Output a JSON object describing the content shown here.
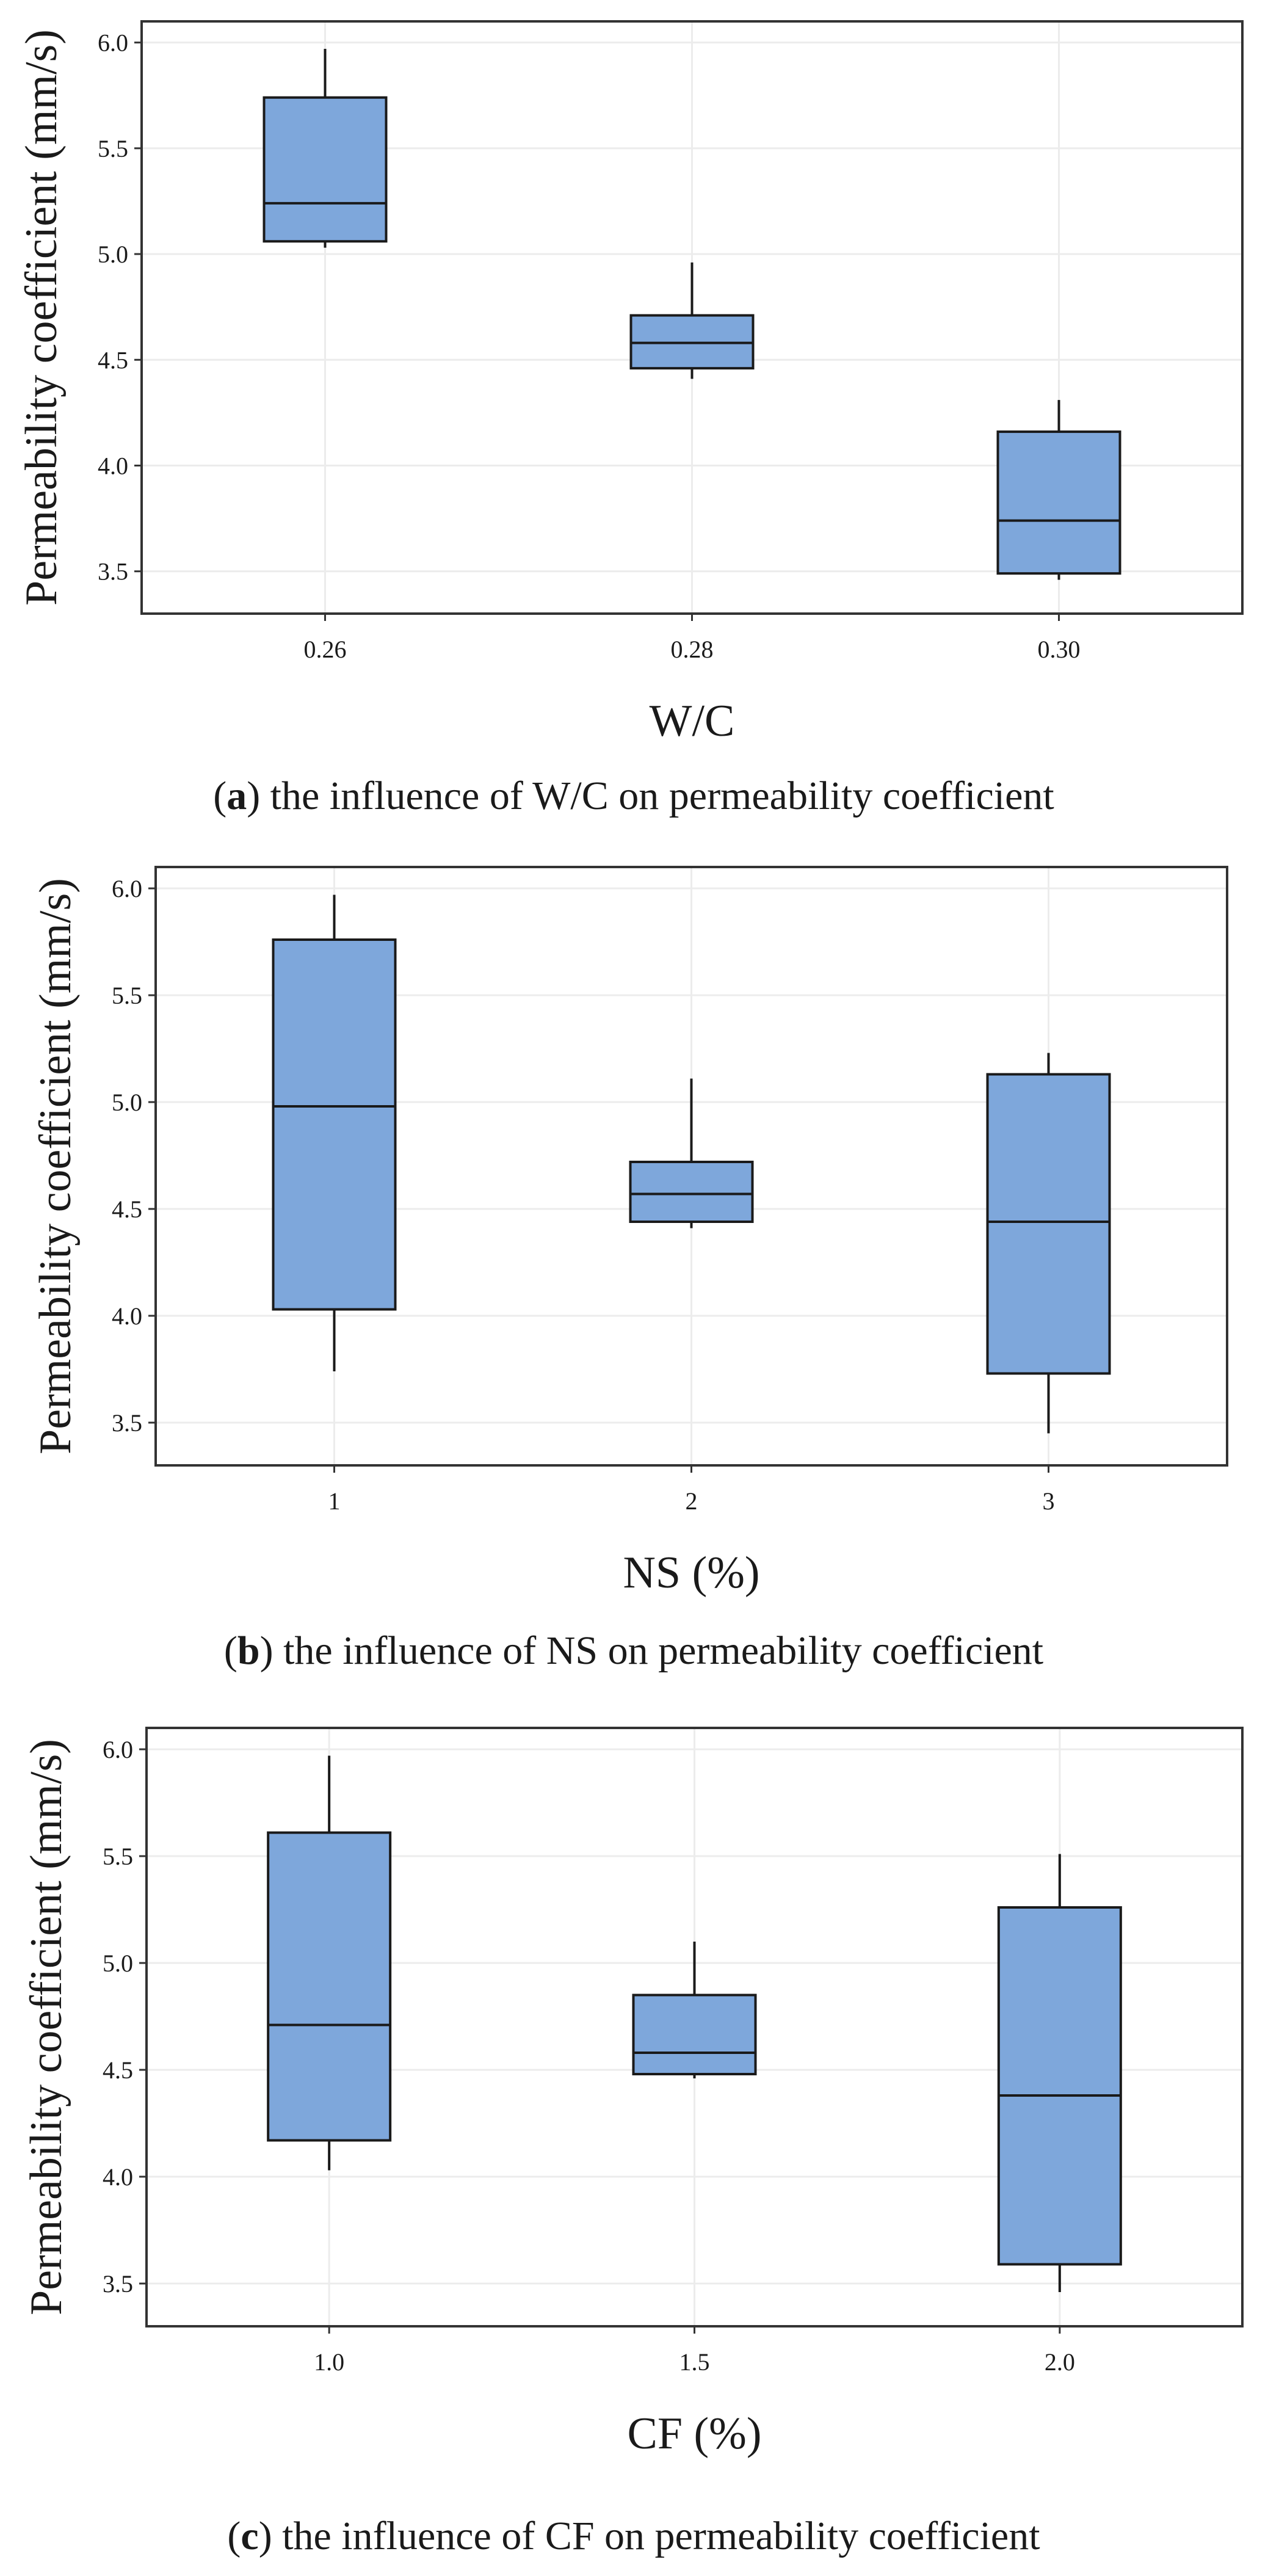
{
  "figure": {
    "panels": [
      {
        "caption": {
          "open": "(",
          "letter": "a",
          "close": ")",
          "text": " the influence of W/C on permeability coefficient"
        }
      },
      {
        "caption": {
          "open": "(",
          "letter": "b",
          "close": ")",
          "text": " the influence of NS on permeability coefficient"
        }
      },
      {
        "caption": {
          "open": "(",
          "letter": "c",
          "close": ")",
          "text": " the influence of CF on permeability coefficient"
        }
      }
    ]
  },
  "colors": {
    "box_fill": "#7ea7db",
    "box_stroke": "#1a1a1a",
    "grid": "#ececec",
    "frame": "#333333"
  },
  "chart_data": [
    {
      "type": "box",
      "xlabel": "W/C",
      "ylabel": "Permeability coefficient (mm/s)",
      "ylim": [
        3.3,
        6.1
      ],
      "yticks": [
        "3.5",
        "4.0",
        "4.5",
        "5.0",
        "5.5",
        "6.0"
      ],
      "categories": [
        "0.26",
        "0.28",
        "0.30"
      ],
      "boxes": [
        {
          "category": "0.26",
          "min": 5.03,
          "q1": 5.06,
          "median": 5.24,
          "q3": 5.74,
          "max": 5.97
        },
        {
          "category": "0.28",
          "min": 4.41,
          "q1": 4.46,
          "median": 4.58,
          "q3": 4.71,
          "max": 4.96
        },
        {
          "category": "0.30",
          "min": 3.46,
          "q1": 3.49,
          "median": 3.74,
          "q3": 4.16,
          "max": 4.31
        }
      ]
    },
    {
      "type": "box",
      "xlabel": "NS (%)",
      "ylabel": "Permeability coefficient (mm/s)",
      "ylim": [
        3.3,
        6.1
      ],
      "yticks": [
        "3.5",
        "4.0",
        "4.5",
        "5.0",
        "5.5",
        "6.0"
      ],
      "categories": [
        "1",
        "2",
        "3"
      ],
      "boxes": [
        {
          "category": "1",
          "min": 3.74,
          "q1": 4.03,
          "median": 4.98,
          "q3": 5.76,
          "max": 5.97
        },
        {
          "category": "2",
          "min": 4.41,
          "q1": 4.44,
          "median": 4.57,
          "q3": 4.72,
          "max": 5.11
        },
        {
          "category": "3",
          "min": 3.45,
          "q1": 3.73,
          "median": 4.44,
          "q3": 5.13,
          "max": 5.23
        }
      ]
    },
    {
      "type": "box",
      "xlabel": "CF (%)",
      "ylabel": "Permeability coefficient (mm/s)",
      "ylim": [
        3.3,
        6.1
      ],
      "yticks": [
        "3.5",
        "4.0",
        "4.5",
        "5.0",
        "5.5",
        "6.0"
      ],
      "categories": [
        "1.0",
        "1.5",
        "2.0"
      ],
      "boxes": [
        {
          "category": "1.0",
          "min": 4.03,
          "q1": 4.17,
          "median": 4.71,
          "q3": 5.61,
          "max": 5.97
        },
        {
          "category": "1.5",
          "min": 4.46,
          "q1": 4.48,
          "median": 4.58,
          "q3": 4.85,
          "max": 5.1
        },
        {
          "category": "2.0",
          "min": 3.46,
          "q1": 3.59,
          "median": 4.38,
          "q3": 5.26,
          "max": 5.51
        }
      ]
    }
  ]
}
